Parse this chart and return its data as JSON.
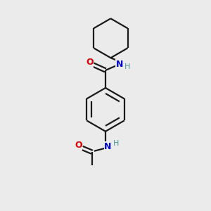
{
  "background_color": "#ebebeb",
  "bond_color": "#1a1a1a",
  "oxygen_color": "#dd0000",
  "nitrogen_color": "#0000cc",
  "hydrogen_color": "#4a9999",
  "line_width": 1.6,
  "figsize": [
    3.0,
    3.0
  ],
  "dpi": 100,
  "xlim": [
    0,
    10
  ],
  "ylim": [
    0,
    10
  ]
}
